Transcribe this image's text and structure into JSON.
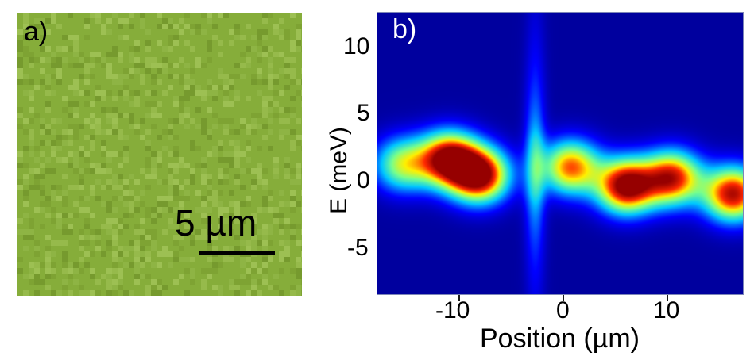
{
  "panel_a": {
    "label": "a)",
    "scale_bar_text": "5 µm"
  },
  "panel_b": {
    "label": "b)",
    "y_axis_label": "E (meV)",
    "x_axis_label": "Position (µm)"
  },
  "chart_data": {
    "type": "heatmap",
    "xlabel": "Position (µm)",
    "ylabel": "E (meV)",
    "xlim": [
      -18,
      18
    ],
    "ylim": [
      -8.5,
      12.5
    ],
    "x_ticks": [
      "-10",
      "0",
      "10"
    ],
    "y_ticks": [
      "10",
      "5",
      "0",
      "-5"
    ],
    "colormap": [
      "#00008b",
      "#0000ff",
      "#00ffff",
      "#ffff00",
      "#ff0000",
      "#8b0000"
    ],
    "intensity_blobs": [
      {
        "x": -15.5,
        "e": 1.2,
        "intensity": 0.55
      },
      {
        "x": -11,
        "e": 1.6,
        "intensity": 0.95
      },
      {
        "x": -8,
        "e": 0.4,
        "intensity": 1.0
      },
      {
        "x": 1,
        "e": 1.0,
        "intensity": 0.75
      },
      {
        "x": 6.5,
        "e": -0.4,
        "intensity": 1.0
      },
      {
        "x": 11,
        "e": 0.2,
        "intensity": 0.85
      },
      {
        "x": 17,
        "e": -1.0,
        "intensity": 0.9
      }
    ],
    "vertical_streak_x": -2.5
  }
}
